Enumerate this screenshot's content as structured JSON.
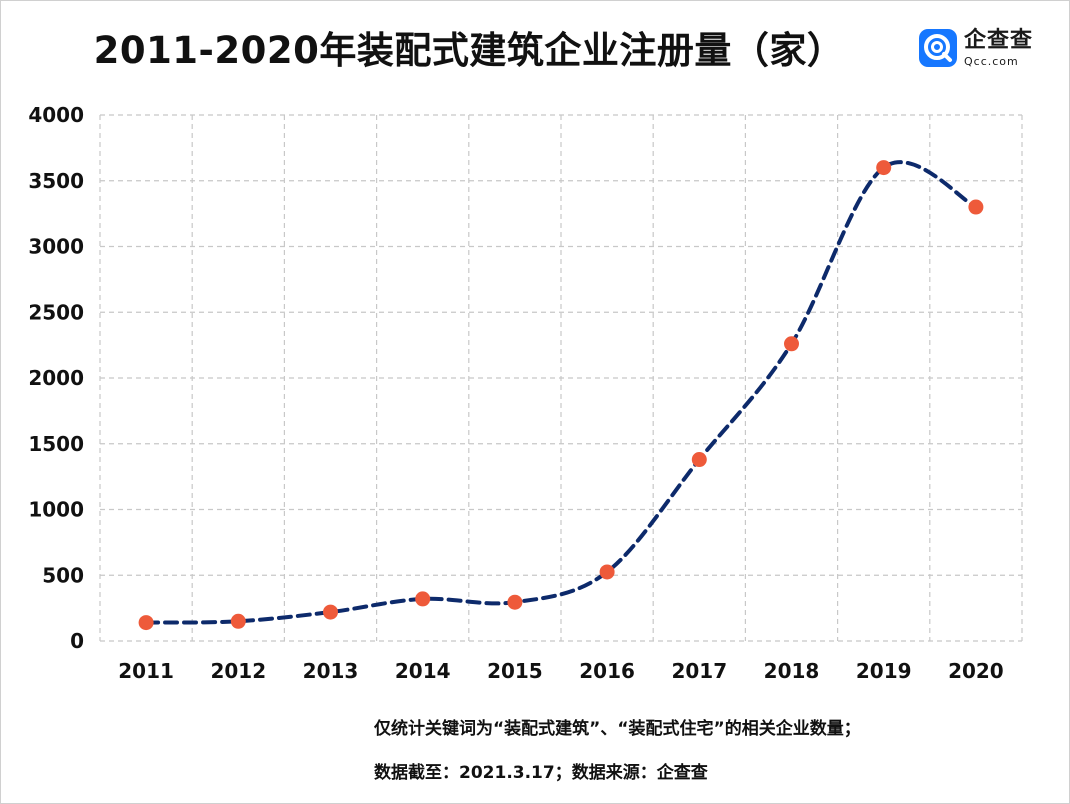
{
  "header": {
    "title": "2011-2020年装配式建筑企业注册量（家）",
    "logo_icon": "qcc-logo-icon",
    "logo_name": "企查查",
    "logo_domain": "Qcc.com"
  },
  "footnotes": {
    "line1": "仅统计关键词为“装配式建筑”、“装配式住宅”的相关企业数量；",
    "line2": "数据截至：2021.3.17；数据来源：企查查"
  },
  "colors": {
    "line": "#0d2a6b",
    "marker": "#ee5a3a",
    "grid": "#c8c8c8"
  },
  "chart_data": {
    "type": "line",
    "title": "2011-2020年装配式建筑企业注册量（家）",
    "xlabel": "",
    "ylabel": "",
    "categories": [
      "2011",
      "2012",
      "2013",
      "2014",
      "2015",
      "2016",
      "2017",
      "2018",
      "2019",
      "2020"
    ],
    "series": [
      {
        "values": [
          140,
          150,
          220,
          320,
          295,
          525,
          1380,
          2260,
          3600,
          3300
        ]
      }
    ],
    "ylim": [
      0,
      4000
    ],
    "yticks": [
      0,
      500,
      1000,
      1500,
      2000,
      2500,
      3000,
      3500,
      4000
    ],
    "grid": true,
    "line_style": "dashed-smooth",
    "legend": "none"
  }
}
